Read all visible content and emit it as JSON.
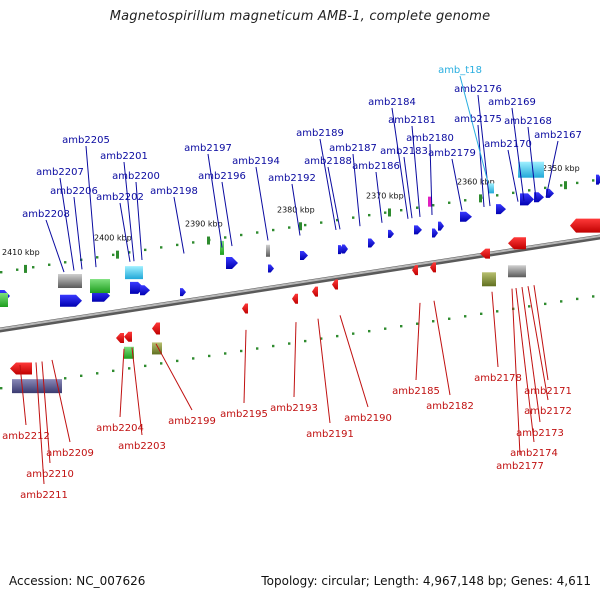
{
  "title": "Magnetospirillum magneticum AMB-1, complete genome",
  "footer": {
    "accession": "Accession: NC_007626",
    "summary": "Topology: circular; Length: 4,967,148 bp; Genes: 4,611"
  },
  "colors": {
    "forward_gene": "#1515e0",
    "reverse_gene": "#ee1111",
    "forward_label": "#0a0aa0",
    "reverse_label": "#c01010",
    "trna_label": "#29aee0",
    "backbone": "#808080",
    "tick": "#2e8b2e"
  },
  "scale_labels": [
    "2410 kbp",
    "2400 kbp",
    "2390 kbp",
    "2380 kbp",
    "2370 kbp",
    "2360 kbp",
    "2350 kbp"
  ],
  "forward_gene_labels": [
    "amb2208",
    "amb2207",
    "amb2206",
    "amb2205",
    "amb2202",
    "amb2201",
    "amb2200",
    "amb2198",
    "amb2197",
    "amb2196",
    "amb2194",
    "amb2192",
    "amb2189",
    "amb2188",
    "amb2187",
    "amb2186",
    "amb2184",
    "amb2183",
    "amb2181",
    "amb2180",
    "amb2179",
    "amb2176",
    "amb2175",
    "amb2170",
    "amb2169",
    "amb2168",
    "amb2167"
  ],
  "trna_labels": [
    "amb_t18"
  ],
  "reverse_gene_labels": [
    "amb2212",
    "amb2211",
    "amb2210",
    "amb2209",
    "amb2204",
    "amb2203",
    "amb2199",
    "amb2195",
    "amb2193",
    "amb2191",
    "amb2190",
    "amb2185",
    "amb2182",
    "amb2178",
    "amb2177",
    "amb2174",
    "amb2173",
    "amb2172",
    "amb2171"
  ]
}
